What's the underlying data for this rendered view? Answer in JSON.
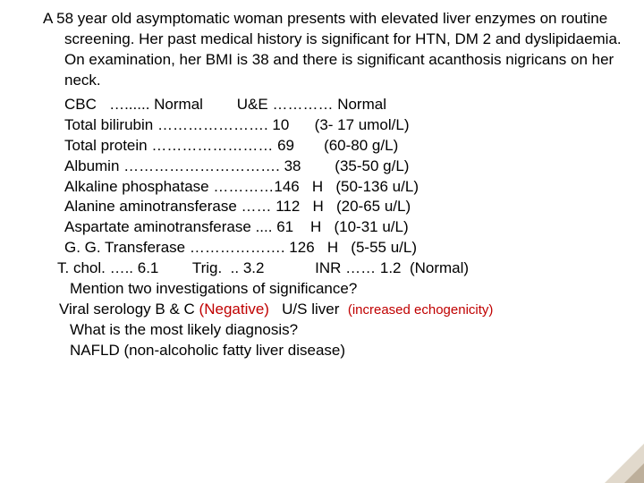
{
  "clinical_case": "A 58 year old asymptomatic woman presents with elevated liver enzymes on routine screening. Her past medical history is significant for HTN, DM 2 and dyslipidaemia. On examination, her BMI is 38 and there is significant acanthosis nigricans on her neck.",
  "screen_line": {
    "cbc_label": "CBC",
    "cbc_dots": "…......",
    "cbc_result": "Normal",
    "ue_label": "U&E",
    "ue_dots": "…………",
    "ue_result": "Normal"
  },
  "labs": [
    {
      "name": "Total bilirubin",
      "dots": " ………………….",
      "value": " 10",
      "flag": "      ",
      "ref": "(3- 17 umol/L)"
    },
    {
      "name": "Total protein",
      "dots": " ……………………",
      "value": " 69",
      "flag": "      ",
      "ref": " (60-80 g/L)"
    },
    {
      "name": "Albumin",
      "dots": " ………………………….",
      "value": " 38",
      "flag": "      ",
      "ref": "  (35-50 g/L)"
    },
    {
      "name": "Alkaline phosphatase",
      "dots": " …………",
      "value": "146",
      "flag": "   H  ",
      "ref": " (50-136 u/L)"
    },
    {
      "name": "Alanine aminotransferase",
      "dots": " ……",
      "value": " 112",
      "flag": "   H  ",
      "ref": " (20-65 u/L)"
    },
    {
      "name": "Aspartate aminotransferase",
      "dots": " ....",
      "value": " 61",
      "flag": "    H  ",
      "ref": " (10-31 u/L)"
    },
    {
      "name": "G. G. Transferase",
      "dots": " ……………….",
      "value": " 126",
      "flag": "   H  ",
      "ref": " (5-55 u/L)"
    }
  ],
  "lipids_line": "T. chol. ….. 6.1        Trig.  .. 3.2            INR …… 1.2  (Normal)",
  "q1": "Mention two investigations of significance?",
  "ans1_a": "Viral serology B & C",
  "ans1_a_res": "(Negative)",
  "ans1_b": "U/S liver",
  "ans1_b_res": "(increased echogenicity)",
  "q2": "What is the most likely diagnosis?",
  "ans2": "NAFLD (non-alcoholic fatty liver disease)",
  "style": {
    "text_color": "#000000",
    "answer_color": "#c00000",
    "answer_small_fontsize": 15,
    "body_fontsize": 17,
    "background": "#ffffff",
    "slide_w": 720,
    "slide_h": 540
  }
}
